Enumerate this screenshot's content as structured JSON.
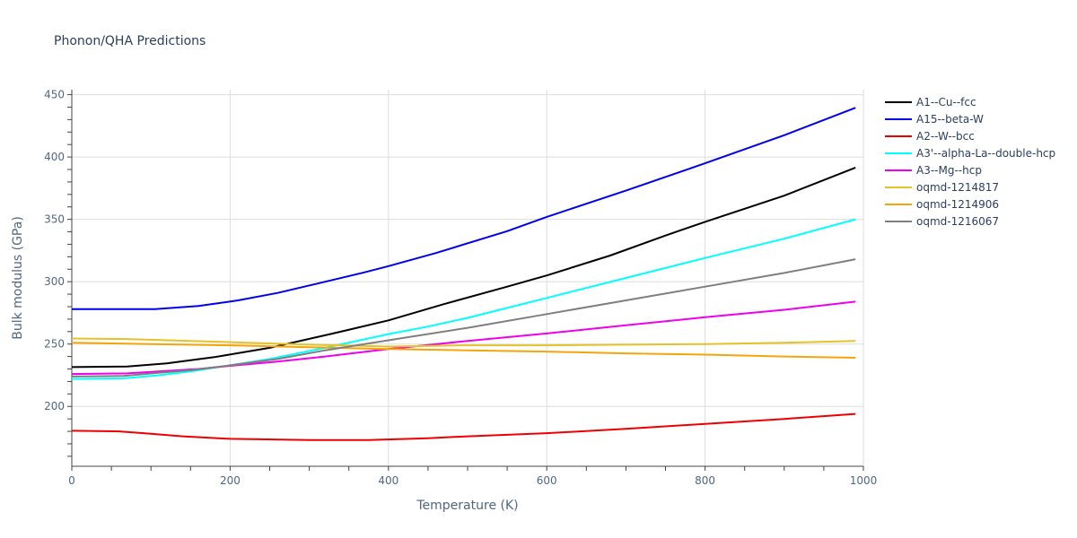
{
  "chart_data": {
    "type": "line",
    "title": "Phonon/QHA Predictions",
    "xlabel": "Temperature (K)",
    "ylabel": "Bulk modulus (GPa)",
    "xlim": [
      0,
      1000
    ],
    "ylim": [
      152,
      454
    ],
    "xticks": [
      0,
      200,
      400,
      600,
      800,
      1000
    ],
    "yticks": [
      200,
      250,
      300,
      350,
      400,
      450
    ],
    "grid": true,
    "legend_position": "top-right outside",
    "series": [
      {
        "name": "A1--Cu--fcc",
        "color": "#000000",
        "points": [
          [
            0,
            231.5
          ],
          [
            70,
            232
          ],
          [
            120,
            234.5
          ],
          [
            180,
            239.5
          ],
          [
            250,
            247
          ],
          [
            330,
            258.5
          ],
          [
            400,
            269
          ],
          [
            470,
            282
          ],
          [
            550,
            296
          ],
          [
            600,
            305
          ],
          [
            680,
            321
          ],
          [
            750,
            337
          ],
          [
            800,
            348
          ],
          [
            900,
            369
          ],
          [
            990,
            391.5
          ]
        ]
      },
      {
        "name": "A15--beta-W",
        "color": "#0000ee",
        "points": [
          [
            0,
            278
          ],
          [
            105,
            278
          ],
          [
            160,
            280.5
          ],
          [
            210,
            285
          ],
          [
            260,
            291
          ],
          [
            310,
            298.5
          ],
          [
            370,
            307.5
          ],
          [
            400,
            312.5
          ],
          [
            460,
            323
          ],
          [
            550,
            340.5
          ],
          [
            600,
            352
          ],
          [
            700,
            373
          ],
          [
            800,
            395
          ],
          [
            900,
            417.5
          ],
          [
            990,
            439.5
          ]
        ]
      },
      {
        "name": "A2--W--bcc",
        "color": "#ee0000",
        "points": [
          [
            0,
            180.5
          ],
          [
            60,
            180
          ],
          [
            100,
            178
          ],
          [
            140,
            176
          ],
          [
            200,
            174
          ],
          [
            300,
            173
          ],
          [
            375,
            173
          ],
          [
            450,
            174.5
          ],
          [
            500,
            176
          ],
          [
            600,
            178.5
          ],
          [
            700,
            182
          ],
          [
            800,
            186
          ],
          [
            900,
            190
          ],
          [
            990,
            194
          ]
        ]
      },
      {
        "name": "A3'--alpha-La--double-hcp",
        "color": "#00ffff",
        "points": [
          [
            0,
            222
          ],
          [
            65,
            222.5
          ],
          [
            110,
            225
          ],
          [
            150,
            228
          ],
          [
            200,
            233
          ],
          [
            250,
            238
          ],
          [
            320,
            247
          ],
          [
            400,
            258
          ],
          [
            450,
            264
          ],
          [
            500,
            271
          ],
          [
            600,
            287
          ],
          [
            700,
            303
          ],
          [
            800,
            319
          ],
          [
            900,
            334.5
          ],
          [
            990,
            350
          ]
        ]
      },
      {
        "name": "A3--Mg--hcp",
        "color": "#ee00ee",
        "points": [
          [
            0,
            226
          ],
          [
            70,
            226.5
          ],
          [
            110,
            228
          ],
          [
            160,
            230
          ],
          [
            200,
            232.5
          ],
          [
            260,
            236
          ],
          [
            320,
            240
          ],
          [
            400,
            246
          ],
          [
            500,
            252.5
          ],
          [
            600,
            258.5
          ],
          [
            700,
            265
          ],
          [
            800,
            271.5
          ],
          [
            900,
            277.5
          ],
          [
            990,
            284
          ]
        ]
      },
      {
        "name": "oqmd-1214817",
        "color": "#e6c229",
        "points": [
          [
            0,
            254.5
          ],
          [
            70,
            254
          ],
          [
            150,
            252.5
          ],
          [
            200,
            251.5
          ],
          [
            300,
            249.5
          ],
          [
            400,
            248
          ],
          [
            500,
            249
          ],
          [
            600,
            249
          ],
          [
            700,
            249.5
          ],
          [
            800,
            250
          ],
          [
            900,
            251
          ],
          [
            990,
            252.5
          ]
        ]
      },
      {
        "name": "oqmd-1214906",
        "color": "#f5a50a",
        "points": [
          [
            0,
            251
          ],
          [
            100,
            250
          ],
          [
            200,
            249
          ],
          [
            300,
            247.5
          ],
          [
            400,
            246
          ],
          [
            500,
            245
          ],
          [
            600,
            244
          ],
          [
            700,
            242.5
          ],
          [
            800,
            241.5
          ],
          [
            900,
            240
          ],
          [
            990,
            239
          ]
        ]
      },
      {
        "name": "oqmd-1216067",
        "color": "#7f7f7f",
        "points": [
          [
            0,
            224
          ],
          [
            65,
            224.5
          ],
          [
            110,
            227
          ],
          [
            150,
            229
          ],
          [
            200,
            233
          ],
          [
            260,
            238
          ],
          [
            320,
            245
          ],
          [
            400,
            253
          ],
          [
            500,
            263
          ],
          [
            600,
            274
          ],
          [
            700,
            285
          ],
          [
            800,
            296
          ],
          [
            900,
            307
          ],
          [
            990,
            318
          ]
        ]
      }
    ]
  }
}
